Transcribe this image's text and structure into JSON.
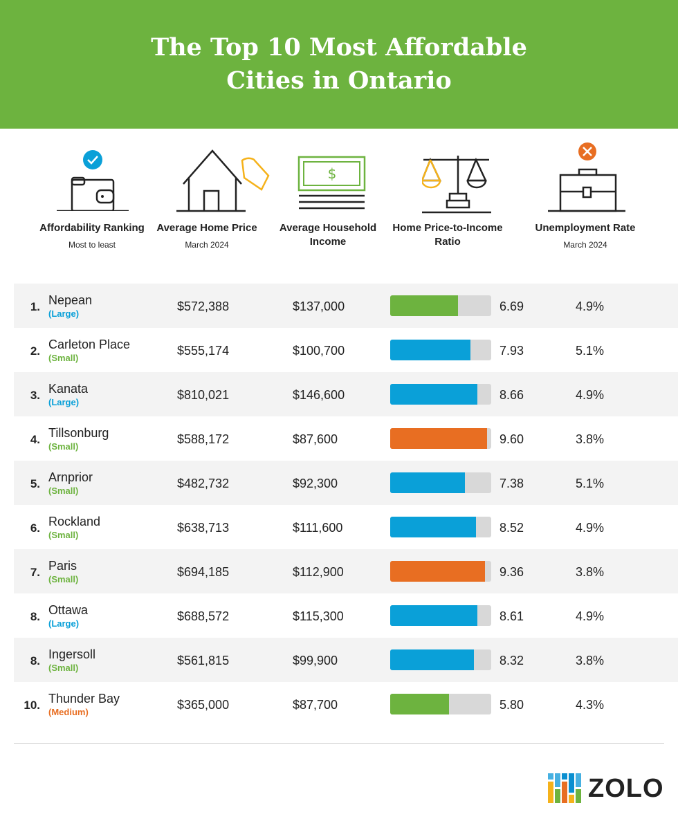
{
  "title": "The Top 10 Most Affordable Cities in Ontario",
  "columns": [
    {
      "title": "Affordability Ranking",
      "sub": "Most to least",
      "icon": "wallet-check-icon"
    },
    {
      "title": "Average Home Price",
      "sub": "March 2024",
      "icon": "house-tag-icon"
    },
    {
      "title": "Average Household Income",
      "sub": "",
      "icon": "money-bill-icon"
    },
    {
      "title": "Home Price-to-Income Ratio",
      "sub": "",
      "icon": "scale-icon"
    },
    {
      "title": "Unemployment Rate",
      "sub": "March 2024",
      "icon": "briefcase-x-icon"
    }
  ],
  "colors": {
    "green": "#6db33f",
    "blue": "#0aa0d8",
    "orange": "#e86e22",
    "track": "#d8d8d8"
  },
  "chart_data": {
    "type": "table",
    "title": "The Top 10 Most Affordable Cities in Ontario",
    "ratio_bar_range": [
      0,
      10
    ],
    "rows": [
      {
        "rank": "1.",
        "city": "Nepean",
        "size": "(Large)",
        "price": "$572,388",
        "income": "$137,000",
        "ratio": 6.69,
        "ratio_label": "6.69",
        "unemployment": "4.9%",
        "bar_color": "green"
      },
      {
        "rank": "2.",
        "city": "Carleton Place",
        "size": "(Small)",
        "price": "$555,174",
        "income": "$100,700",
        "ratio": 7.93,
        "ratio_label": "7.93",
        "unemployment": "5.1%",
        "bar_color": "blue"
      },
      {
        "rank": "3.",
        "city": "Kanata",
        "size": "(Large)",
        "price": "$810,021",
        "income": "$146,600",
        "ratio": 8.66,
        "ratio_label": "8.66",
        "unemployment": "4.9%",
        "bar_color": "blue"
      },
      {
        "rank": "4.",
        "city": "Tillsonburg",
        "size": "(Small)",
        "price": "$588,172",
        "income": "$87,600",
        "ratio": 9.6,
        "ratio_label": "9.60",
        "unemployment": "3.8%",
        "bar_color": "orange"
      },
      {
        "rank": "5.",
        "city": "Arnprior",
        "size": "(Small)",
        "price": "$482,732",
        "income": "$92,300",
        "ratio": 7.38,
        "ratio_label": "7.38",
        "unemployment": "5.1%",
        "bar_color": "blue"
      },
      {
        "rank": "6.",
        "city": "Rockland",
        "size": "(Small)",
        "price": "$638,713",
        "income": "$111,600",
        "ratio": 8.52,
        "ratio_label": "8.52",
        "unemployment": "4.9%",
        "bar_color": "blue"
      },
      {
        "rank": "7.",
        "city": "Paris",
        "size": "(Small)",
        "price": "$694,185",
        "income": "$112,900",
        "ratio": 9.36,
        "ratio_label": "9.36",
        "unemployment": "3.8%",
        "bar_color": "orange"
      },
      {
        "rank": "8.",
        "city": "Ottawa",
        "size": "(Large)",
        "price": "$688,572",
        "income": "$115,300",
        "ratio": 8.61,
        "ratio_label": "8.61",
        "unemployment": "4.9%",
        "bar_color": "blue"
      },
      {
        "rank": "8.",
        "city": "Ingersoll",
        "size": "(Small)",
        "price": "$561,815",
        "income": "$99,900",
        "ratio": 8.32,
        "ratio_label": "8.32",
        "unemployment": "3.8%",
        "bar_color": "blue"
      },
      {
        "rank": "10.",
        "city": "Thunder Bay",
        "size": "(Medium)",
        "price": "$365,000",
        "income": "$87,700",
        "ratio": 5.8,
        "ratio_label": "5.80",
        "unemployment": "4.3%",
        "bar_color": "green"
      }
    ],
    "size_colors": {
      "(Large)": "#0aa0d8",
      "(Small)": "#6db33f",
      "(Medium)": "#e86e22"
    }
  },
  "logo": {
    "text": "ZOLO"
  }
}
